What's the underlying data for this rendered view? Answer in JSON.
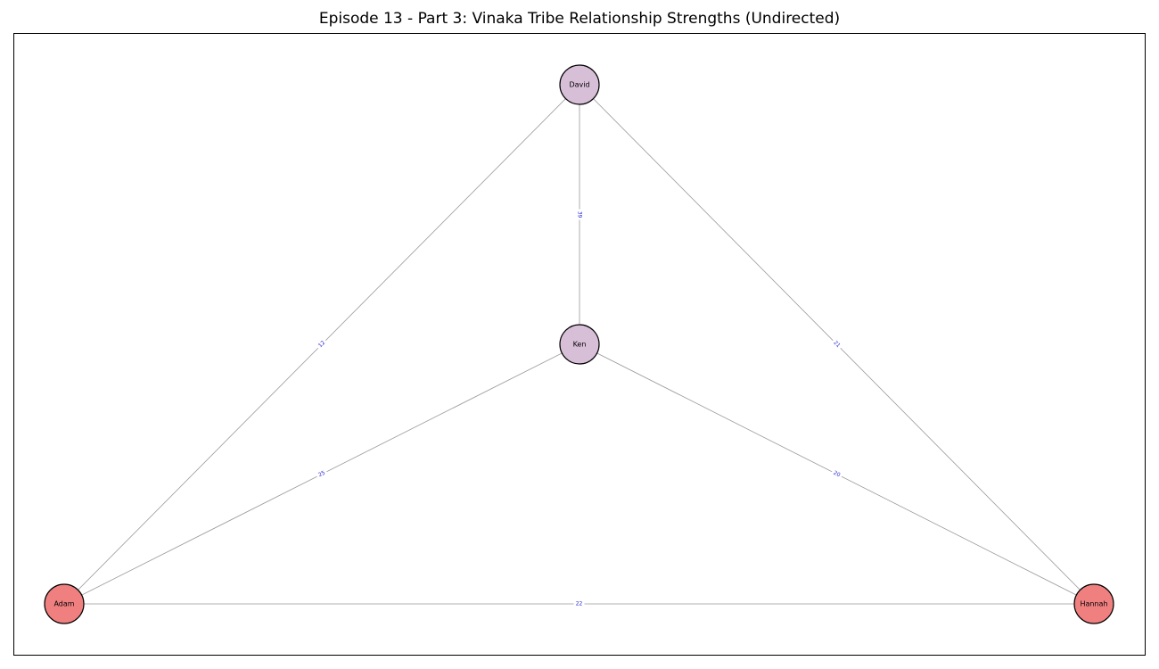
{
  "title": "Episode 13 - Part 3: Vinaka Tribe Relationship Strengths (Undirected)",
  "colors": {
    "edge": "#999999",
    "edge_label": "#1f1fd6",
    "node_border": "#000000"
  },
  "nodes": [
    {
      "id": "David",
      "label": "David",
      "color": "#d8bfd8"
    },
    {
      "id": "Ken",
      "label": "Ken",
      "color": "#d8bfd8"
    },
    {
      "id": "Adam",
      "label": "Adam",
      "color": "#f08080"
    },
    {
      "id": "Hannah",
      "label": "Hannah",
      "color": "#f08080"
    }
  ],
  "edges": [
    {
      "source": "David",
      "target": "Ken",
      "weight": "39"
    },
    {
      "source": "David",
      "target": "Adam",
      "weight": "12"
    },
    {
      "source": "David",
      "target": "Hannah",
      "weight": "21"
    },
    {
      "source": "Ken",
      "target": "Adam",
      "weight": "25"
    },
    {
      "source": "Ken",
      "target": "Hannah",
      "weight": "20"
    },
    {
      "source": "Adam",
      "target": "Hannah",
      "weight": "22"
    }
  ]
}
